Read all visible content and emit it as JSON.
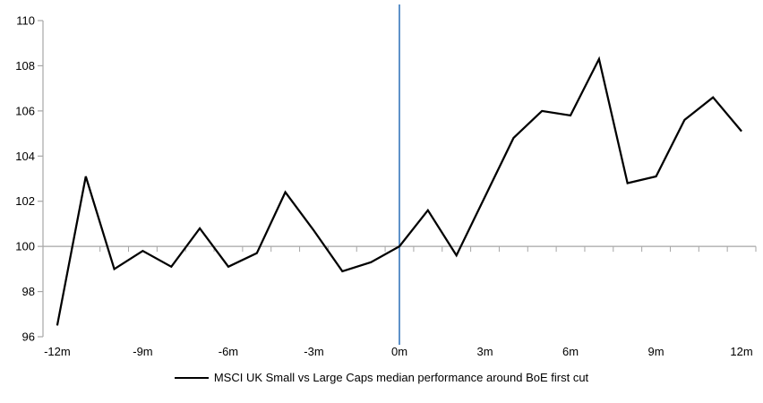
{
  "chart_data": {
    "type": "line",
    "title": "",
    "xlabel": "",
    "ylabel": "",
    "x": [
      -12,
      -11,
      -10,
      -9,
      -8,
      -7,
      -6,
      -5,
      -4,
      -3,
      -2,
      -1,
      0,
      1,
      2,
      3,
      4,
      5,
      6,
      7,
      8,
      9,
      10,
      11,
      12
    ],
    "series": [
      {
        "name": "MSCI UK Small vs Large Caps median performance around BoE first cut",
        "color": "#000000",
        "values": [
          96.5,
          103.1,
          99.0,
          99.8,
          99.1,
          100.8,
          99.1,
          99.7,
          102.4,
          100.7,
          98.9,
          99.3,
          100.0,
          101.6,
          99.6,
          102.2,
          104.8,
          106.0,
          105.8,
          108.3,
          102.8,
          103.1,
          105.6,
          106.6,
          105.1
        ]
      }
    ],
    "ylim": [
      96,
      110
    ],
    "y_ticks": [
      96,
      98,
      100,
      102,
      104,
      106,
      108,
      110
    ],
    "x_tick_positions": [
      -12,
      -9,
      -6,
      -3,
      0,
      3,
      6,
      9,
      12
    ],
    "x_tick_labels": [
      "-12m",
      "-9m",
      "-6m",
      "-3m",
      "0m",
      "3m",
      "6m",
      "9m",
      "12m"
    ],
    "baseline_value": 100,
    "event_line_x": 0,
    "grid": "baseline-only",
    "legend_position": "bottom-center",
    "colors": {
      "series": "#000000",
      "axis": "#a6a6a6",
      "baseline": "#a6a6a6",
      "event_line": "#4d86c3",
      "text": "#000000",
      "background": "#ffffff"
    }
  }
}
